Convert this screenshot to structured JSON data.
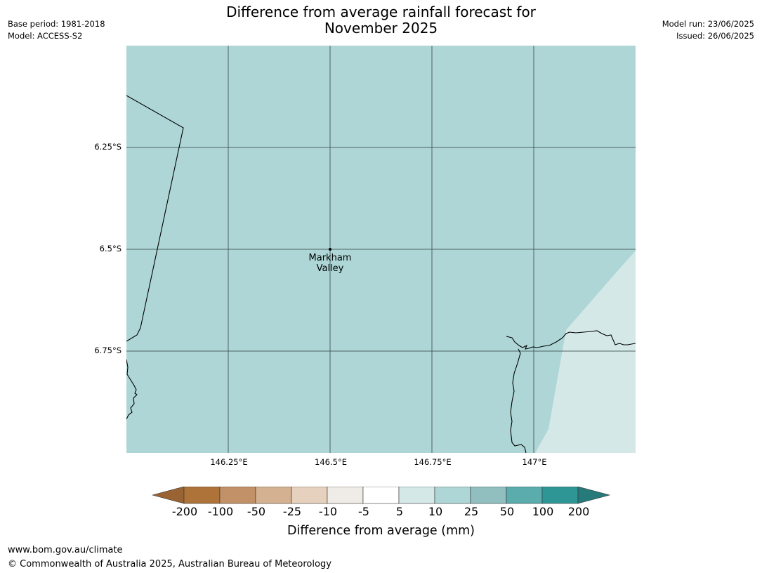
{
  "title": {
    "line1": "Difference from average rainfall forecast for",
    "line2": "November 2025"
  },
  "meta_left": {
    "base_period": "Base period: 1981-2018",
    "model": "Model: ACCESS-S2"
  },
  "meta_right": {
    "model_run": "Model run: 23/06/2025",
    "issued": "Issued: 26/06/2025"
  },
  "map": {
    "lat_labels": [
      "6.25°S",
      "6.5°S",
      "6.75°S"
    ],
    "lon_labels": [
      "146.25°E",
      "146.5°E",
      "146.75°E",
      "147°E"
    ],
    "place": {
      "line1": "Markham",
      "line2": "Valley"
    },
    "region_categories": [
      "10 to 25",
      "5 to 10"
    ],
    "colors": {
      "main_fill": "#aed6d6",
      "light_fill": "#d5e8e8",
      "grid": "#3c4f4f",
      "boundary": "#000000"
    }
  },
  "colorbar": {
    "ticks": [
      "-200",
      "-100",
      "-50",
      "-25",
      "-10",
      "-5",
      "5",
      "10",
      "25",
      "50",
      "100",
      "200"
    ],
    "colors": [
      "#9a6333",
      "#ad7339",
      "#c29167",
      "#d4b191",
      "#e5d1bd",
      "#efebe7",
      "#ffffff",
      "#d5e8e8",
      "#aed6d6",
      "#91bfbf",
      "#5aacad",
      "#2f9696",
      "#267a7a"
    ],
    "title": "Difference from average (mm)"
  },
  "footer": {
    "url": "www.bom.gov.au/climate",
    "copyright": "© Commonwealth of Australia 2025, Australian Bureau of Meteorology"
  }
}
